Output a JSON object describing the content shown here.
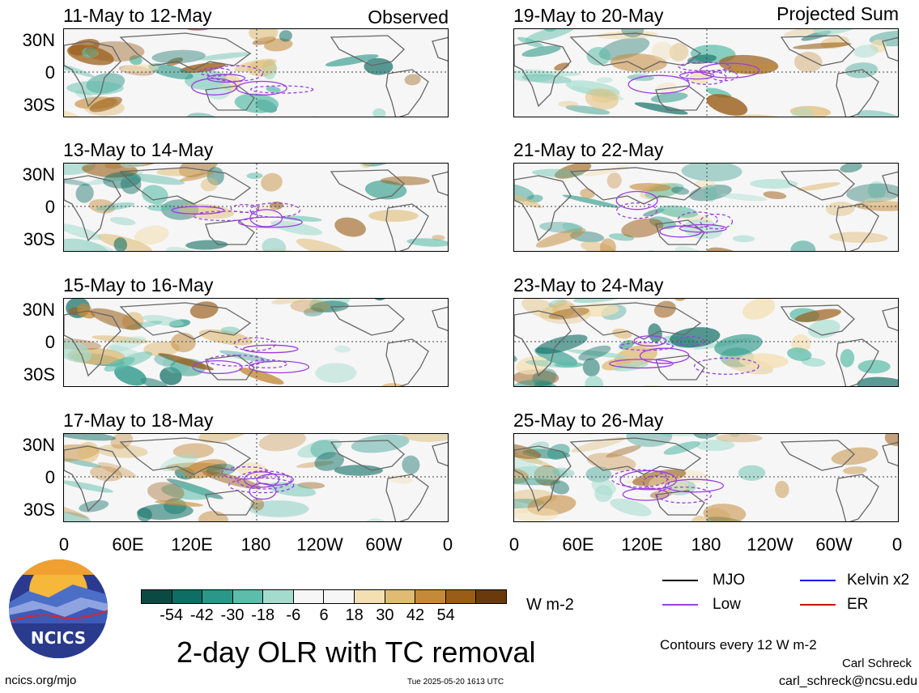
{
  "header": {
    "observed_label": "Observed",
    "projected_label": "Projected Sum"
  },
  "panels_left": [
    {
      "title": "11-May to 12-May"
    },
    {
      "title": "13-May to 14-May"
    },
    {
      "title": "15-May to 16-May"
    },
    {
      "title": "17-May to 18-May"
    }
  ],
  "panels_right": [
    {
      "title": "19-May to 20-May"
    },
    {
      "title": "21-May to 22-May"
    },
    {
      "title": "23-May to 24-May"
    },
    {
      "title": "25-May to 26-May"
    }
  ],
  "axes": {
    "lat_ticks": [
      "30N",
      "0",
      "30S"
    ],
    "lon_ticks": [
      "0",
      "60E",
      "120E",
      "180",
      "120W",
      "60W",
      "0"
    ]
  },
  "colorbar": {
    "colors": [
      "#0b4a43",
      "#0f6e64",
      "#2a9788",
      "#5cbdaa",
      "#a3dccd",
      "#f6f6f6",
      "#f6f6f6",
      "#f3dfb2",
      "#dfbb74",
      "#c48a3a",
      "#9a5d17",
      "#6b3a0c"
    ],
    "labels": [
      "-54",
      "-42",
      "-30",
      "-18",
      "-6",
      "6",
      "18",
      "30",
      "42",
      "54"
    ],
    "units": "W m-2"
  },
  "legend": {
    "items": [
      {
        "label": "MJO",
        "color": "#000000"
      },
      {
        "label": "Kelvin x2",
        "color": "#0000ee"
      },
      {
        "label": "Low",
        "color": "#9a3ee0"
      },
      {
        "label": "ER",
        "color": "#c0140f"
      }
    ],
    "contours_note": "Contours every 12 W m-2"
  },
  "title": "2-day OLR with TC removal",
  "logo": {
    "text": "NCICS"
  },
  "footer": {
    "url": "ncics.org/mjo",
    "timestamp": "Tue 2025-05-20 1613 UTC",
    "author": "Carl Schreck",
    "email": "carl_schreck@ncsu.edu"
  }
}
